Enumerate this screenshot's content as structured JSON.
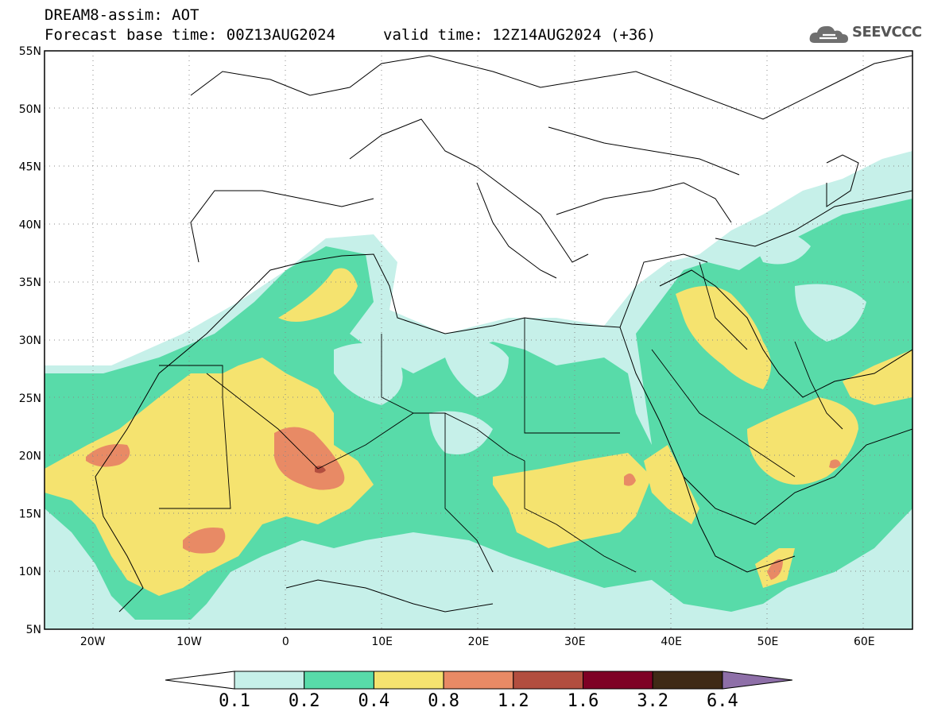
{
  "header": {
    "model_line": "DREAM8-assim: AOT",
    "base_time_line": "Forecast base time: 00Z13AUG2024",
    "valid_time_line": "valid time: 12Z14AUG2024 (+36)"
  },
  "logo": {
    "text": "SEEVCCC",
    "icon": "cloud-icon"
  },
  "map": {
    "lat_labels": [
      "55N",
      "50N",
      "45N",
      "40N",
      "35N",
      "30N",
      "25N",
      "20N",
      "15N",
      "10N",
      "5N"
    ],
    "lon_labels": [
      "20W",
      "10W",
      "0",
      "10E",
      "20E",
      "30E",
      "40E",
      "50E",
      "60E"
    ],
    "lon_range": [
      -25,
      65
    ],
    "lat_range": [
      5,
      55
    ],
    "grid": "dotted"
  },
  "colorbar": {
    "levels": [
      "0.1",
      "0.2",
      "0.4",
      "0.8",
      "1.2",
      "1.6",
      "3.2",
      "6.4"
    ],
    "colors": [
      "#ffffff",
      "#c6f0e9",
      "#58dba9",
      "#f5e36f",
      "#e88a65",
      "#b24e3f",
      "#7e0125",
      "#3f2a16",
      "#8e6fa8"
    ]
  }
}
